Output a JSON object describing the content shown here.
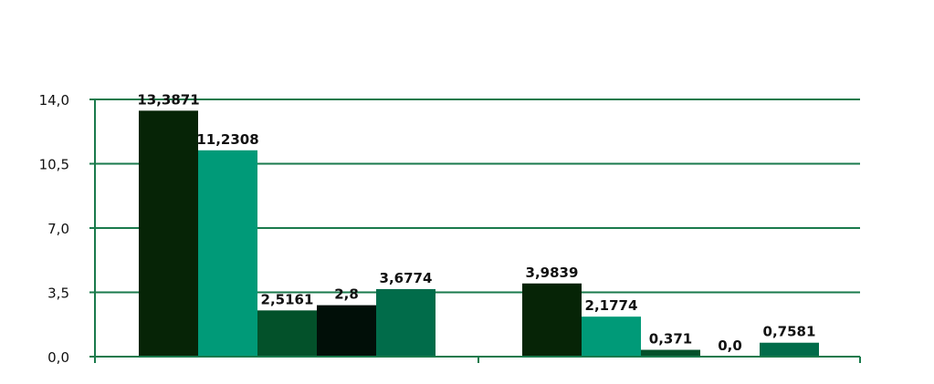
{
  "chart_data": {
    "type": "bar",
    "title": "",
    "xlabel": "",
    "ylabel": "",
    "ylim": [
      0,
      14
    ],
    "yticks": [
      0,
      3.5,
      7,
      10.5,
      14
    ],
    "ytick_labels": [
      "0,0",
      "3,5",
      "7,0",
      "10,5",
      "14,0"
    ],
    "grid": true,
    "legend": "none",
    "groups": [
      {
        "bars": [
          {
            "value": 13.3871,
            "label": "13,3871",
            "color": "#062406"
          },
          {
            "value": 11.2308,
            "label": "11,2308",
            "color": "#009a78"
          },
          {
            "value": 2.5161,
            "label": "2,5161",
            "color": "#03512a"
          },
          {
            "value": 2.8,
            "label": "2,8",
            "color": "#010f08"
          },
          {
            "value": 3.6774,
            "label": "3,6774",
            "color": "#016c4a"
          }
        ]
      },
      {
        "bars": [
          {
            "value": 3.9839,
            "label": "3,9839",
            "color": "#062406"
          },
          {
            "value": 2.1774,
            "label": "2,1774",
            "color": "#009a78"
          },
          {
            "value": 0.371,
            "label": "0,371",
            "color": "#03512a"
          },
          {
            "value": 0.0,
            "label": "0,0",
            "color": "#010f08"
          },
          {
            "value": 0.7581,
            "label": "0,7581",
            "color": "#016c4a"
          }
        ]
      }
    ],
    "colors": {
      "grid": "#1a7a4c",
      "axis": "#1a7a4c"
    }
  }
}
